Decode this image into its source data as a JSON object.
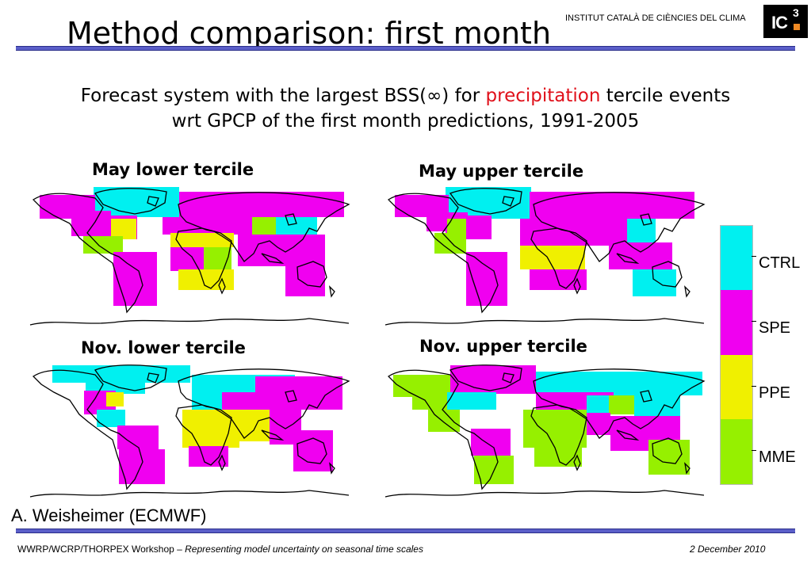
{
  "header": {
    "title": "Method comparison: first month",
    "institute": "INSTITUT CATALÀ DE CIÈNCIES DEL CLIMA",
    "logo_text": "IC",
    "logo_sup": "3"
  },
  "subtitle": {
    "line1_before": "Forecast system with the largest BSS(∞) for ",
    "line1_highlight": "precipitation",
    "line1_after": " tercile events",
    "line2": "wrt GPCP of the first month predictions, 1991-2005",
    "highlight_color": "#e0101a"
  },
  "panels": [
    {
      "title": "May lower tercile"
    },
    {
      "title": "May upper tercile"
    },
    {
      "title": "Nov. lower tercile"
    },
    {
      "title": "Nov. upper tercile"
    }
  ],
  "legend": {
    "items": [
      {
        "label": "CTRL",
        "color": "#00f0f0"
      },
      {
        "label": "SPE",
        "color": "#f000f0"
      },
      {
        "label": "PPE",
        "color": "#f0f000"
      },
      {
        "label": "MME",
        "color": "#96f000"
      }
    ]
  },
  "author": "A. Weisheimer (ECMWF)",
  "footer": {
    "left_plain": "WWRP/WCRP/THORPEX Workshop – ",
    "left_italic": "Representing model uncertainty on seasonal time scales",
    "date": "2 December 2010"
  }
}
